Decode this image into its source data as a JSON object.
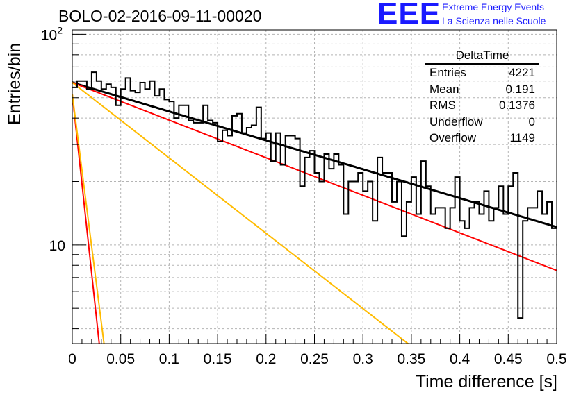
{
  "title": "BOLO-02-2016-09-11-00020",
  "logo": {
    "mark": "EEE",
    "line1": "Extreme Energy Events",
    "line2": "La Scienza nelle Scuole",
    "color": "#1a1aff"
  },
  "stats_box": {
    "title": "DeltaTime",
    "rows": [
      {
        "label": "Entries",
        "value": "4221"
      },
      {
        "label": "Mean",
        "value": "0.191"
      },
      {
        "label": "RMS",
        "value": "0.1376"
      },
      {
        "label": "Underflow",
        "value": "0"
      },
      {
        "label": "Overflow",
        "value": "1149"
      }
    ]
  },
  "chart_data": {
    "type": "histogram",
    "xlabel": "Time difference [s]",
    "ylabel": "Entries/bin",
    "xlim": [
      0,
      0.5
    ],
    "ylim": [
      3.4,
      105
    ],
    "yscale": "log",
    "grid": true,
    "x_ticks": [
      "0",
      "0.05",
      "0.1",
      "0.15",
      "0.2",
      "0.25",
      "0.3",
      "0.35",
      "0.4",
      "0.45",
      "0.5"
    ],
    "y_ticks": [
      {
        "value": 10,
        "base": "10",
        "exp": ""
      },
      {
        "value": 100,
        "base": "10",
        "exp": "2"
      }
    ],
    "bin_width": 0.005,
    "counts": [
      56,
      60,
      60,
      55,
      66,
      60,
      55,
      58,
      56,
      46,
      55,
      62,
      54,
      53,
      59,
      55,
      60,
      51,
      55,
      49,
      48,
      40,
      46,
      46,
      39,
      38,
      38,
      46,
      39,
      38,
      31,
      35,
      33,
      41,
      42,
      34,
      36,
      37,
      45,
      32,
      34,
      25,
      34,
      24,
      33,
      33,
      32,
      19,
      26,
      28,
      22,
      20,
      27,
      23,
      27,
      24,
      14,
      20,
      20,
      22,
      18,
      20,
      13,
      26,
      22,
      22,
      16,
      20,
      11,
      16,
      21,
      14,
      25,
      19,
      14,
      15,
      15,
      12,
      15,
      21,
      13,
      12,
      15,
      16,
      14,
      18,
      13,
      15,
      19,
      14,
      19,
      22,
      4.5,
      13,
      15,
      15,
      18,
      14,
      16,
      12
    ],
    "histogram_color": "#000000",
    "fits": [
      {
        "color": "#000000",
        "amplitude": 59,
        "tau": 0.3165,
        "x_range": [
          0,
          0.5
        ]
      },
      {
        "color": "#ff0000",
        "amplitude": 59,
        "tau": 0.2434,
        "x_range": [
          0,
          0.5
        ]
      },
      {
        "color": "#ffbb00",
        "amplitude": 59,
        "tau": 0.1214,
        "x_range": [
          0,
          0.5
        ]
      },
      {
        "color": "#ff0000",
        "amplitude": 52,
        "tau": 0.0102,
        "x_range": [
          0,
          0.5
        ]
      },
      {
        "color": "#ffbb00",
        "amplitude": 52,
        "tau": 0.012,
        "x_range": [
          0,
          0.5
        ]
      }
    ]
  }
}
